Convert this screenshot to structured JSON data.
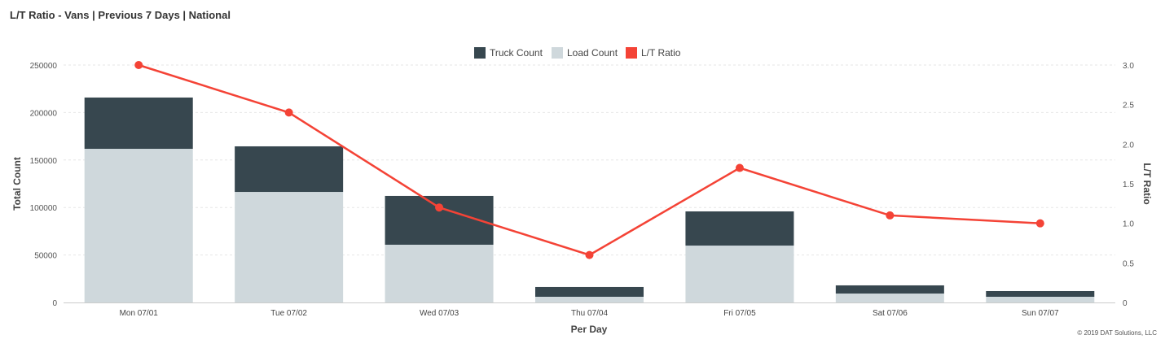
{
  "title": "L/T Ratio - Vans | Previous 7 Days | National",
  "copyright": "© 2019 DAT Solutions, LLC",
  "chart_data": {
    "type": "bar",
    "stacked": true,
    "categories": [
      "Mon 07/01",
      "Tue 07/02",
      "Wed 07/03",
      "Thu 07/04",
      "Fri 07/05",
      "Sat 07/06",
      "Sun 07/07"
    ],
    "series": [
      {
        "name": "Truck Count",
        "type": "bar",
        "axis": "left",
        "color": "#37474f",
        "values": [
          54000,
          48000,
          51400,
          10300,
          36000,
          8600,
          6000
        ]
      },
      {
        "name": "Load Count",
        "type": "bar",
        "axis": "left",
        "color": "#cfd8dc",
        "values": [
          161800,
          116400,
          60800,
          6000,
          59900,
          9400,
          6000
        ]
      },
      {
        "name": "L/T Ratio",
        "type": "line",
        "axis": "right",
        "color": "#f44336",
        "values": [
          3.0,
          2.4,
          1.2,
          0.6,
          1.7,
          1.1,
          1.0
        ]
      }
    ],
    "xlabel": "Per Day",
    "ylabel": "Total Count",
    "y2label": "L/T Ratio",
    "ylim": [
      0,
      250000
    ],
    "yticks": [
      0,
      50000,
      100000,
      150000,
      200000,
      250000
    ],
    "y2lim": [
      0,
      3.0
    ],
    "y2ticks": [
      "0",
      "0.5",
      "1.0",
      "1.5",
      "2.0",
      "2.5",
      "3.0"
    ],
    "grid": true,
    "legend": "top-center"
  }
}
